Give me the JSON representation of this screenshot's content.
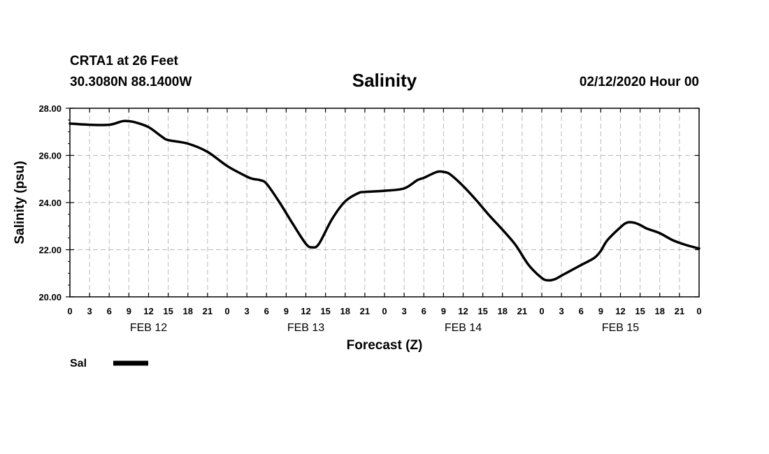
{
  "header": {
    "station": "CRTA1 at 26 Feet",
    "coordinates": "30.3080N 88.1400W",
    "title": "Salinity",
    "datetime": "02/12/2020 Hour 00"
  },
  "chart_data": {
    "type": "line",
    "title": "Salinity",
    "xlabel": "Forecast (Z)",
    "ylabel": "Salinity (psu)",
    "ylim": [
      20,
      28
    ],
    "xlim_hours": [
      0,
      96
    ],
    "y_ticks": [
      "20.00",
      "22.00",
      "24.00",
      "26.00",
      "28.00"
    ],
    "x_tick_labels": [
      "0",
      "3",
      "6",
      "9",
      "12",
      "15",
      "18",
      "21",
      "0",
      "3",
      "6",
      "9",
      "12",
      "15",
      "18",
      "21",
      "0",
      "3",
      "6",
      "9",
      "12",
      "15",
      "18",
      "21",
      "0",
      "3",
      "6",
      "9",
      "12",
      "15",
      "18",
      "21",
      "0"
    ],
    "day_labels": [
      "FEB 12",
      "FEB 13",
      "FEB 14",
      "FEB 15"
    ],
    "grid": true,
    "legend_position": "bottom-left",
    "series": [
      {
        "name": "Sal",
        "color": "#000000",
        "x_hours": [
          0,
          3,
          6,
          8,
          9,
          10,
          12,
          14,
          15,
          18,
          21,
          24,
          27,
          28,
          29,
          30,
          32,
          34,
          36,
          37,
          38,
          40,
          42,
          44,
          45,
          48,
          51,
          53,
          54,
          56,
          57,
          58,
          60,
          62,
          64,
          66,
          68,
          70,
          72,
          73,
          74,
          75,
          76,
          78,
          80,
          81,
          82,
          84,
          85,
          86,
          87,
          88,
          90,
          92,
          94,
          96
        ],
        "values": [
          27.35,
          27.3,
          27.3,
          27.45,
          27.45,
          27.4,
          27.2,
          26.8,
          26.65,
          26.5,
          26.15,
          25.55,
          25.1,
          25.0,
          24.95,
          24.8,
          24.0,
          23.1,
          22.25,
          22.1,
          22.25,
          23.3,
          24.05,
          24.4,
          24.45,
          24.5,
          24.6,
          24.95,
          25.05,
          25.3,
          25.3,
          25.2,
          24.7,
          24.1,
          23.45,
          22.85,
          22.2,
          21.35,
          20.8,
          20.7,
          20.75,
          20.9,
          21.05,
          21.35,
          21.65,
          21.95,
          22.4,
          22.95,
          23.15,
          23.15,
          23.05,
          22.9,
          22.7,
          22.4,
          22.2,
          22.05
        ]
      }
    ]
  }
}
